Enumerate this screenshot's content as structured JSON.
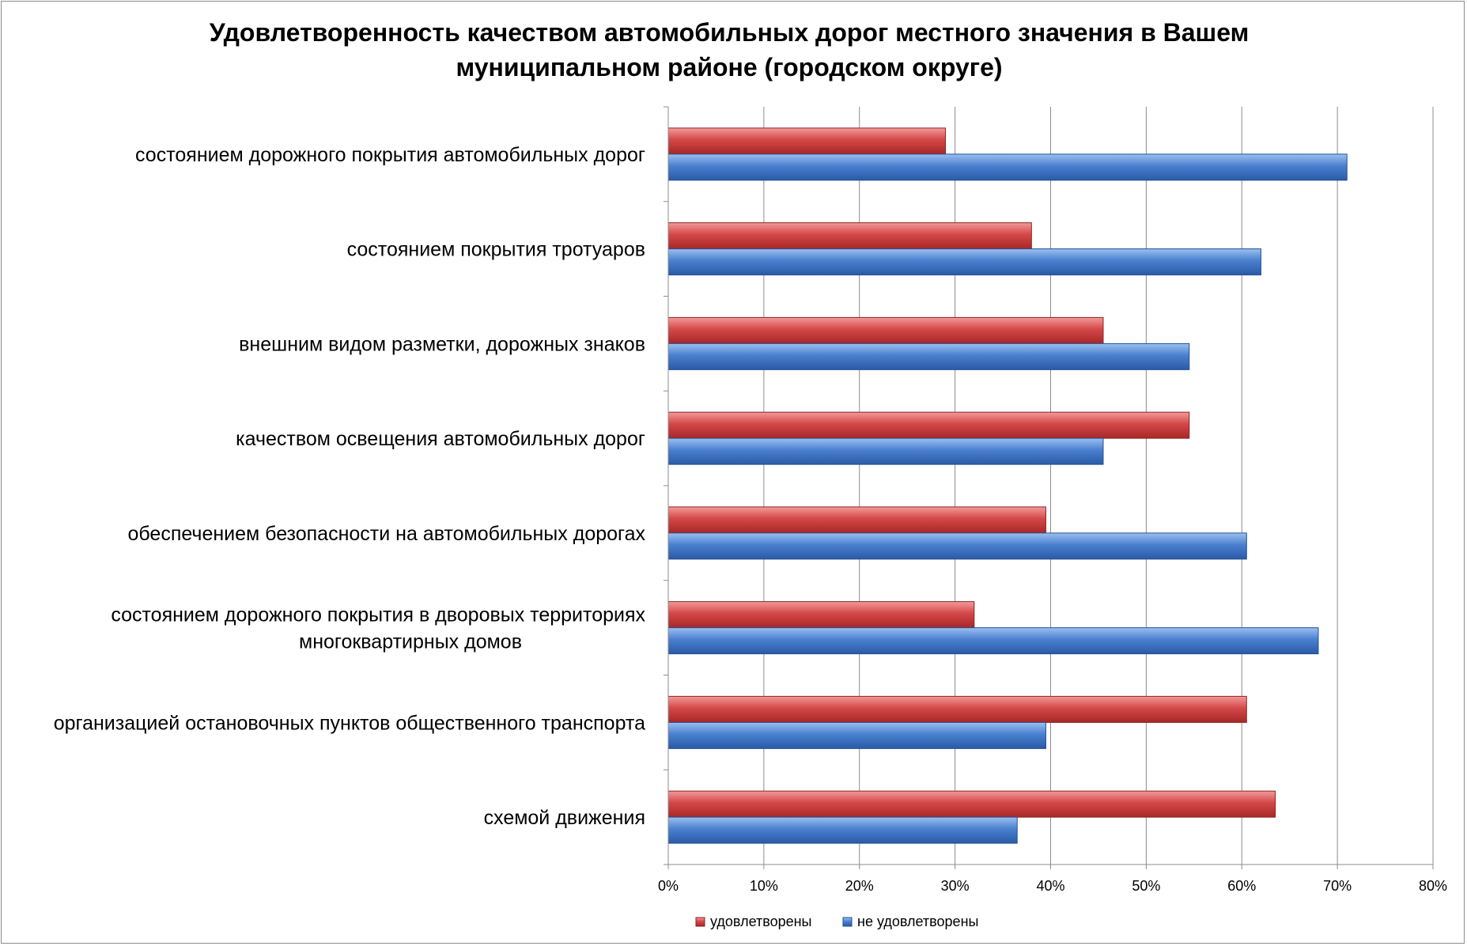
{
  "chart_data": {
    "type": "bar",
    "orientation": "horizontal",
    "title_lines": [
      "Удовлетворенность качеством автомобильных дорог местного значения в Вашем",
      "муниципальном районе (городском округе)"
    ],
    "categories": [
      [
        "состоянием дорожного покрытия автомобильных дорог"
      ],
      [
        "состоянием покрытия тротуаров"
      ],
      [
        "внешним видом разметки, дорожных знаков"
      ],
      [
        "качеством освещения автомобильных дорог"
      ],
      [
        "обеспечением безопасности на автомобильных дорогах"
      ],
      [
        "состоянием дорожного покрытия в дворовых территориях",
        "многоквартирных домов"
      ],
      [
        "организацией остановочных пунктов общественного транспорта"
      ],
      [
        "схемой движения"
      ]
    ],
    "series": [
      {
        "name": "удовлетворены",
        "color": "#c0393b",
        "values": [
          29,
          38,
          45.5,
          54.5,
          39.5,
          32,
          60.5,
          63.5
        ]
      },
      {
        "name": "не удовлетворены",
        "color": "#3a6fc2",
        "values": [
          71,
          62,
          54.5,
          45.5,
          60.5,
          68,
          39.5,
          36.5
        ]
      }
    ],
    "x_ticks": [
      "0%",
      "10%",
      "20%",
      "30%",
      "40%",
      "50%",
      "60%",
      "70%",
      "80%"
    ],
    "xlim": [
      0,
      80
    ],
    "grid": true,
    "legend_position": "bottom"
  }
}
